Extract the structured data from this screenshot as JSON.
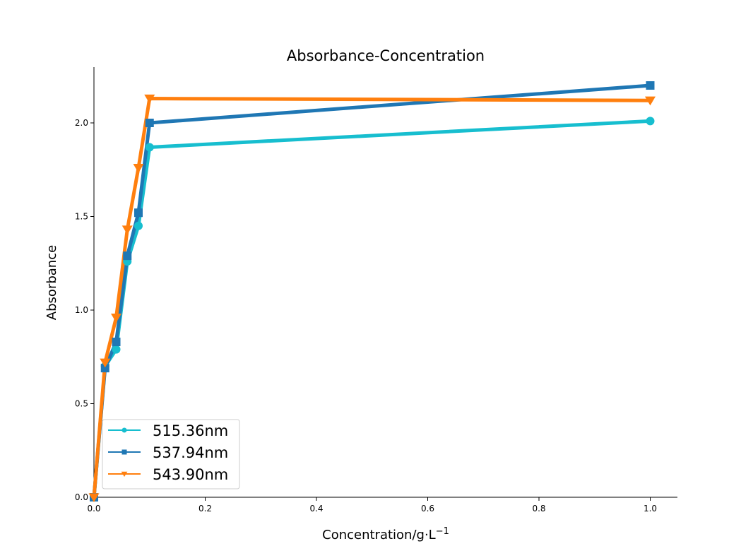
{
  "chart_data": {
    "type": "line",
    "title": "Absorbance-Concentration",
    "xlabel": "Concentration/g·L",
    "xlabel_superscript": "−1",
    "ylabel": "Absorbance",
    "xlim": [
      0.0,
      1.05
    ],
    "ylim": [
      0.0,
      2.3
    ],
    "x_ticks": [
      0.0,
      0.2,
      0.4,
      0.6,
      0.8,
      1.0
    ],
    "x_tick_labels": [
      "0.0",
      "0.2",
      "0.4",
      "0.6",
      "0.8",
      "1.0"
    ],
    "y_ticks": [
      0.0,
      0.5,
      1.0,
      1.5,
      2.0
    ],
    "y_tick_labels": [
      "0.0",
      "0.5",
      "1.0",
      "1.5",
      "2.0"
    ],
    "grid": false,
    "legend_position": "lower-left",
    "x": [
      0.0,
      0.02,
      0.04,
      0.06,
      0.08,
      0.1,
      1.0
    ],
    "series": [
      {
        "name": "515.36nm",
        "marker": "circle",
        "color": "#17becf",
        "values": [
          0.0,
          0.7,
          0.79,
          1.26,
          1.45,
          1.87,
          2.01
        ]
      },
      {
        "name": "537.94nm",
        "marker": "square",
        "color": "#1f77b4",
        "values": [
          0.0,
          0.69,
          0.83,
          1.29,
          1.52,
          2.0,
          2.2
        ]
      },
      {
        "name": "543.90nm",
        "marker": "triangle-down",
        "color": "#ff7f0e",
        "values": [
          0.0,
          0.72,
          0.96,
          1.43,
          1.76,
          2.13,
          2.12
        ]
      }
    ]
  }
}
